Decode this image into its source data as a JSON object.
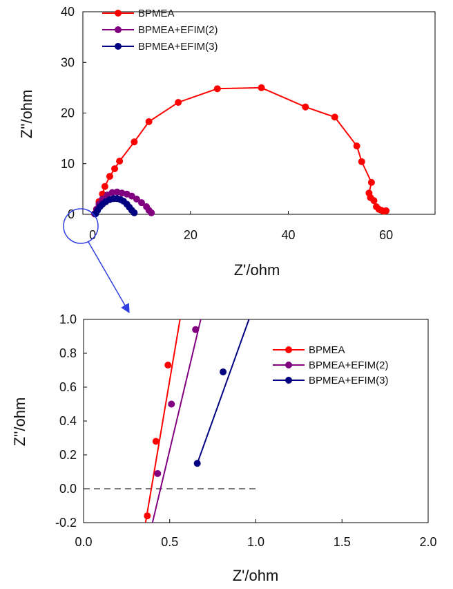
{
  "chart_data": [
    {
      "type": "line",
      "xlabel": "Z'/ohm",
      "ylabel": "Z''/ohm",
      "xlim": [
        -2,
        70
      ],
      "ylim": [
        0,
        40
      ],
      "xticks": [
        0,
        20,
        40,
        60
      ],
      "yticks": [
        0,
        10,
        20,
        30,
        40
      ],
      "grid": false,
      "legend_position": "top-left",
      "series": [
        {
          "name": "BPMEA",
          "color": "#ff0000",
          "points": [
            [
              0.4,
              0.1
            ],
            [
              0.8,
              1.0
            ],
            [
              1.3,
              2.5
            ],
            [
              2.0,
              4.0
            ],
            [
              2.5,
              5.5
            ],
            [
              3.5,
              7.5
            ],
            [
              4.5,
              9.0
            ],
            [
              5.5,
              10.5
            ],
            [
              8.5,
              14.3
            ],
            [
              11.5,
              18.3
            ],
            [
              17.5,
              22.1
            ],
            [
              25.5,
              24.8
            ],
            [
              34.5,
              25.0
            ],
            [
              43.5,
              21.2
            ],
            [
              49.5,
              19.2
            ],
            [
              54.0,
              13.5
            ],
            [
              55.0,
              10.4
            ],
            [
              57.0,
              6.3
            ],
            [
              56.5,
              4.2
            ],
            [
              56.8,
              3.3
            ],
            [
              57.5,
              2.7
            ],
            [
              58.0,
              1.5
            ],
            [
              58.5,
              1.0
            ],
            [
              59.0,
              0.8
            ],
            [
              59.5,
              0.6
            ],
            [
              60.0,
              0.7
            ]
          ]
        },
        {
          "name": "BPMEA+EFIM(2)",
          "color": "#800080",
          "points": [
            [
              0.4,
              0.1
            ],
            [
              0.8,
              1.0
            ],
            [
              1.3,
              2.0
            ],
            [
              2.0,
              3.0
            ],
            [
              3.0,
              3.8
            ],
            [
              4.0,
              4.3
            ],
            [
              5.0,
              4.4
            ],
            [
              6.0,
              4.2
            ],
            [
              7.0,
              4.0
            ],
            [
              8.0,
              3.6
            ],
            [
              9.0,
              3.0
            ],
            [
              10.0,
              2.3
            ],
            [
              11.0,
              1.5
            ],
            [
              11.5,
              0.8
            ],
            [
              12.0,
              0.3
            ]
          ]
        },
        {
          "name": "BPMEA+EFIM(3)",
          "color": "#000080",
          "points": [
            [
              0.6,
              0.1
            ],
            [
              1.0,
              0.8
            ],
            [
              1.5,
              1.5
            ],
            [
              2.0,
              2.0
            ],
            [
              2.7,
              2.5
            ],
            [
              3.5,
              2.9
            ],
            [
              4.3,
              3.1
            ],
            [
              5.0,
              3.1
            ],
            [
              5.7,
              2.9
            ],
            [
              6.3,
              2.6
            ],
            [
              7.0,
              2.0
            ],
            [
              7.5,
              1.4
            ],
            [
              8.0,
              0.8
            ],
            [
              8.5,
              0.3
            ]
          ]
        }
      ]
    },
    {
      "type": "line",
      "xlabel": "Z'/ohm",
      "ylabel": "Z''/ohm",
      "xlim": [
        0,
        2.0
      ],
      "ylim": [
        -0.2,
        1.0
      ],
      "xticks": [
        "0.0",
        "0.5",
        "1.0",
        "1.5",
        "2.0"
      ],
      "yticks": [
        "-0.2",
        "0.0",
        "0.2",
        "0.4",
        "0.6",
        "0.8",
        "1.0"
      ],
      "grid": false,
      "legend_position": "top-right",
      "reference_line": {
        "y": 0,
        "x_range": [
          0,
          1.02
        ],
        "style": "dashed"
      },
      "series": [
        {
          "name": "BPMEA",
          "color": "#ff0000",
          "points": [
            [
              0.37,
              -0.16
            ],
            [
              0.42,
              0.28
            ],
            [
              0.49,
              0.73
            ]
          ],
          "line_extent": [
            [
              0.36,
              -0.2
            ],
            [
              0.56,
              1.0
            ]
          ]
        },
        {
          "name": "BPMEA+EFIM(2)",
          "color": "#800080",
          "points": [
            [
              0.43,
              0.09
            ],
            [
              0.51,
              0.5
            ],
            [
              0.65,
              0.94
            ]
          ],
          "line_extent": [
            [
              0.4,
              -0.2
            ],
            [
              0.68,
              1.0
            ]
          ]
        },
        {
          "name": "BPMEA+EFIM(3)",
          "color": "#000080",
          "points": [
            [
              0.66,
              0.15
            ],
            [
              0.81,
              0.69
            ]
          ],
          "line_extent": [
            [
              0.66,
              0.15
            ],
            [
              0.96,
              1.0
            ]
          ]
        }
      ]
    }
  ]
}
